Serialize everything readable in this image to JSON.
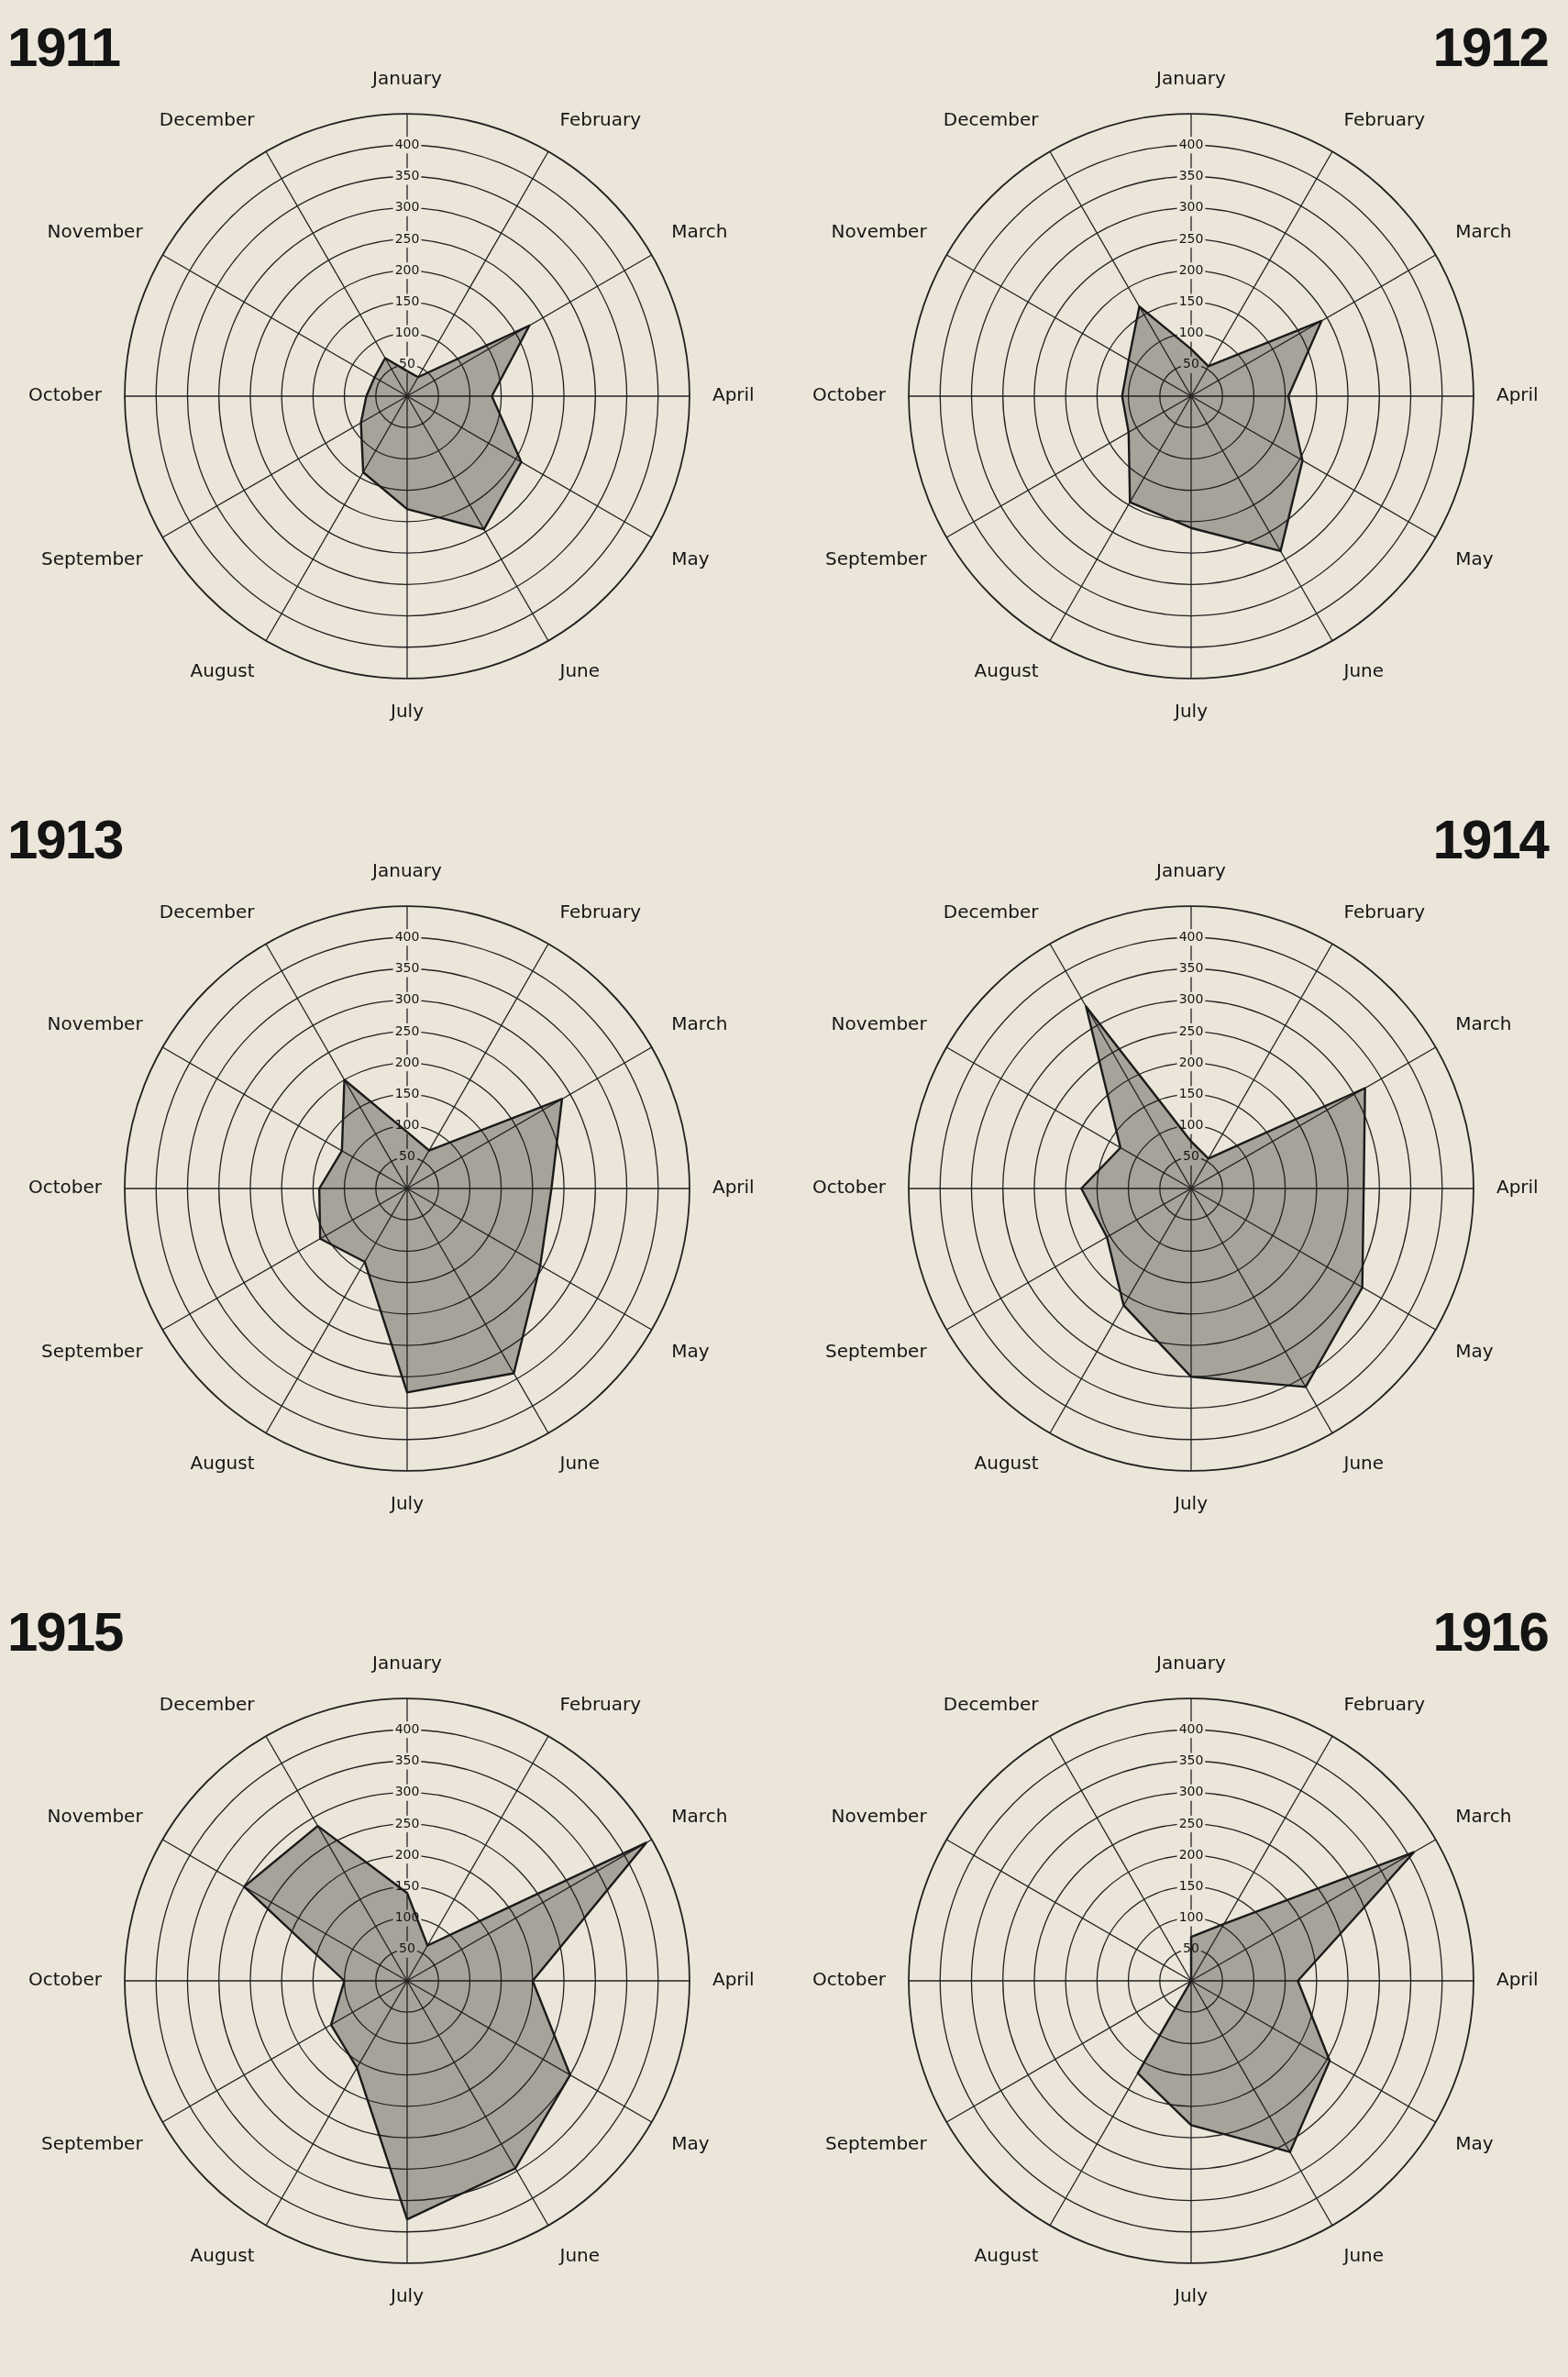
{
  "chart_data": [
    {
      "type": "radar",
      "title": "1911",
      "categories": [
        "January",
        "February",
        "March",
        "April",
        "May",
        "June",
        "July",
        "August",
        "September",
        "October",
        "November",
        "December"
      ],
      "series": [
        {
          "color": "#1a1a1a",
          "values": [
            40,
            35,
            225,
            135,
            210,
            245,
            180,
            140,
            85,
            65,
            60,
            70
          ]
        }
      ],
      "ylim": [
        0,
        450
      ],
      "yticks": [
        50,
        100,
        150,
        200,
        250,
        300,
        350,
        400
      ],
      "grid": true
    },
    {
      "type": "radar",
      "title": "1912",
      "categories": [
        "January",
        "February",
        "March",
        "April",
        "May",
        "June",
        "July",
        "August",
        "September",
        "October",
        "November",
        "December"
      ],
      "series": [
        {
          "color": "#1a1a1a",
          "values": [
            75,
            55,
            240,
            155,
            205,
            285,
            210,
            195,
            115,
            110,
            115,
            165
          ]
        }
      ],
      "ylim": [
        0,
        450
      ],
      "yticks": [
        50,
        100,
        150,
        200,
        250,
        300,
        350,
        400
      ],
      "grid": true
    },
    {
      "type": "radar",
      "title": "1913",
      "categories": [
        "January",
        "February",
        "March",
        "April",
        "May",
        "June",
        "July",
        "August",
        "September",
        "October",
        "November",
        "December"
      ],
      "series": [
        {
          "color": "#1a1a1a",
          "values": [
            90,
            70,
            285,
            230,
            245,
            340,
            325,
            135,
            160,
            140,
            120,
            200
          ]
        }
      ],
      "ylim": [
        0,
        450
      ],
      "yticks": [
        50,
        100,
        150,
        200,
        250,
        300,
        350,
        400
      ],
      "grid": true
    },
    {
      "type": "radar",
      "title": "1914",
      "categories": [
        "January",
        "February",
        "March",
        "April",
        "May",
        "June",
        "July",
        "August",
        "September",
        "October",
        "November",
        "December"
      ],
      "series": [
        {
          "color": "#1a1a1a",
          "values": [
            75,
            55,
            320,
            275,
            315,
            365,
            300,
            215,
            155,
            175,
            130,
            335
          ]
        }
      ],
      "ylim": [
        0,
        450
      ],
      "yticks": [
        50,
        100,
        150,
        200,
        250,
        300,
        350,
        400
      ],
      "grid": true
    },
    {
      "type": "radar",
      "title": "1915",
      "categories": [
        "January",
        "February",
        "March",
        "April",
        "May",
        "June",
        "July",
        "August",
        "September",
        "October",
        "November",
        "December"
      ],
      "series": [
        {
          "color": "#1a1a1a",
          "values": [
            140,
            65,
            440,
            200,
            300,
            345,
            380,
            160,
            140,
            100,
            300,
            285
          ]
        }
      ],
      "ylim": [
        0,
        450
      ],
      "yticks": [
        50,
        100,
        150,
        200,
        250,
        300,
        350,
        400
      ],
      "grid": true
    },
    {
      "type": "radar",
      "title": "1916",
      "categories": [
        "January",
        "February",
        "March",
        "April",
        "May",
        "June",
        "July",
        "August",
        "September",
        "October",
        "November",
        "December"
      ],
      "series": [
        {
          "color": "#1a1a1a",
          "values": [
            70,
            105,
            410,
            170,
            255,
            315,
            230,
            170,
            0,
            0,
            0,
            0
          ]
        }
      ],
      "ylim": [
        0,
        450
      ],
      "yticks": [
        50,
        100,
        150,
        200,
        250,
        300,
        350,
        400
      ],
      "grid": true
    }
  ]
}
